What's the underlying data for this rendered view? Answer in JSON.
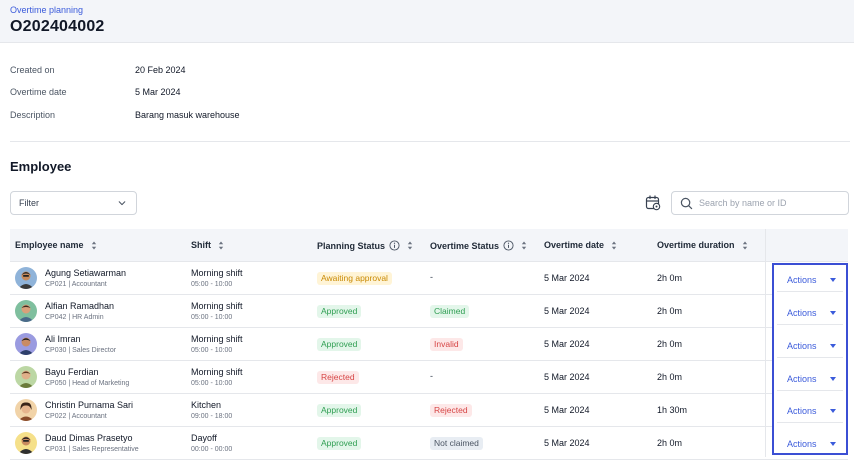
{
  "header": {
    "breadcrumb": "Overtime planning",
    "title": "O202404002"
  },
  "info": [
    {
      "label": "Created on",
      "value": "20 Feb 2024"
    },
    {
      "label": "Overtime date",
      "value": "5 Mar 2024"
    },
    {
      "label": "Description",
      "value": "Barang masuk warehouse"
    }
  ],
  "section_title": "Employee",
  "filter": {
    "label": "Filter",
    "icon": "chevron-down-icon"
  },
  "search": {
    "placeholder": "Search by name or ID",
    "value": ""
  },
  "columns": [
    "Employee name",
    "Shift",
    "Planning Status",
    "Overtime Status",
    "Overtime date",
    "Overtime duration"
  ],
  "rows": [
    {
      "name": "Agung Setiawarman",
      "sub": "CP021 | Accountant",
      "shift": "Morning shift",
      "time": "05:00 - 10:00",
      "planning": "Awaiting approval",
      "overtime": "-",
      "date": "5 Mar 2024",
      "duration": "2h 0m",
      "action": "Actions"
    },
    {
      "name": "Alfian Ramadhan",
      "sub": "CP042 | HR Admin",
      "shift": "Morning shift",
      "time": "05:00 - 10:00",
      "planning": "Approved",
      "overtime": "Claimed",
      "date": "5 Mar 2024",
      "duration": "2h 0m",
      "action": "Actions"
    },
    {
      "name": "Ali Imran",
      "sub": "CP030 | Sales Director",
      "shift": "Morning shift",
      "time": "05:00 - 10:00",
      "planning": "Approved",
      "overtime": "Invalid",
      "date": "5 Mar 2024",
      "duration": "2h 0m",
      "action": "Actions"
    },
    {
      "name": "Bayu Ferdian",
      "sub": "CP050 | Head of Marketing",
      "shift": "Morning shift",
      "time": "05:00 - 10:00",
      "planning": "Rejected",
      "overtime": "-",
      "date": "5 Mar 2024",
      "duration": "2h 0m",
      "action": "Actions"
    },
    {
      "name": "Christin Purnama Sari",
      "sub": "CP022 | Accountant",
      "shift": "Kitchen",
      "time": "09:00 - 18:00",
      "planning": "Approved",
      "overtime": "Rejected",
      "date": "5 Mar 2024",
      "duration": "1h 30m",
      "action": "Actions"
    },
    {
      "name": "Daud Dimas Prasetyo",
      "sub": "CP031 | Sales Representative",
      "shift": "Dayoff",
      "time": "00:00 - 00:00",
      "planning": "Approved",
      "overtime": "Not claimed",
      "date": "5 Mar 2024",
      "duration": "2h 0m",
      "action": "Actions"
    }
  ],
  "colors": {
    "accent": "#3b5bdb",
    "highlight_border": "#3b4fd4",
    "header_bg": "#f3f5f9"
  }
}
